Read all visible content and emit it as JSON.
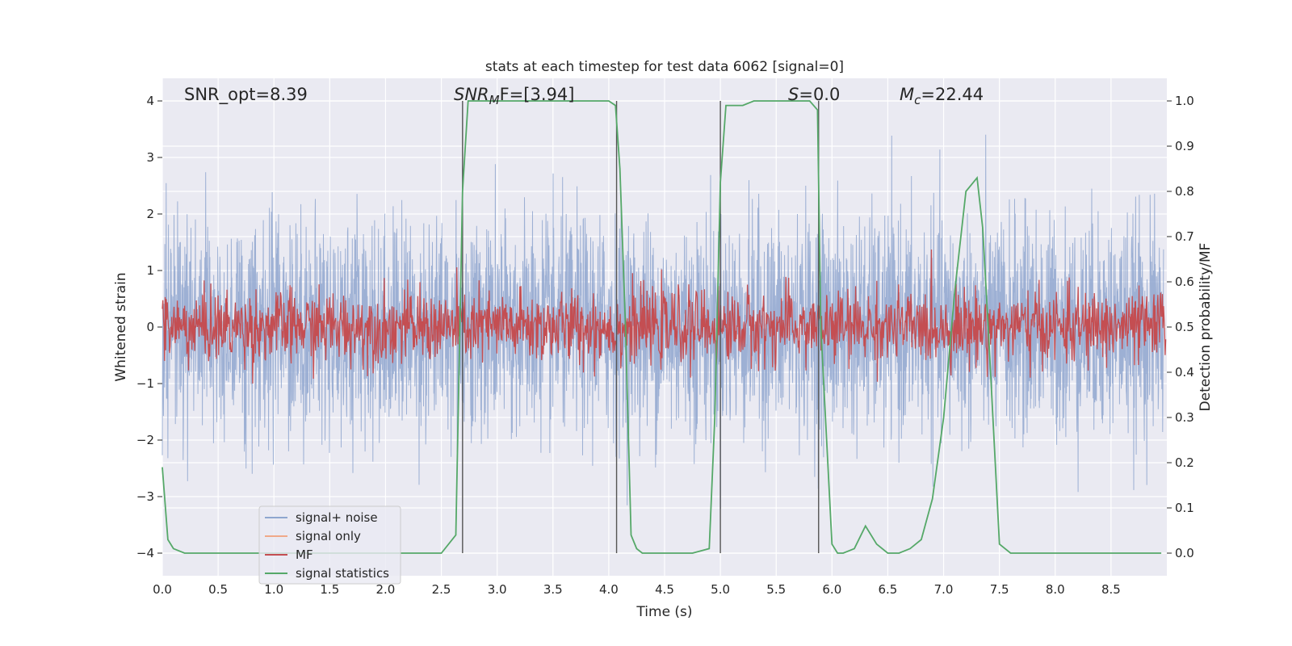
{
  "chart_data": {
    "type": "line",
    "title": "stats at each timestep for test data 6062 [signal=0]",
    "xlabel": "Time (s)",
    "ylabel_left": "Whitened strain",
    "ylabel_right": "Detection probability/MF",
    "xlim": [
      0.0,
      9.0
    ],
    "ylim_left": [
      -4.4,
      4.4
    ],
    "ylim_right": [
      -0.05,
      1.05
    ],
    "x_ticks": [
      0.0,
      0.5,
      1.0,
      1.5,
      2.0,
      2.5,
      3.0,
      3.5,
      4.0,
      4.5,
      5.0,
      5.5,
      6.0,
      6.5,
      7.0,
      7.5,
      8.0,
      8.5
    ],
    "x_tick_labels": [
      "0.0",
      "0.5",
      "1.0",
      "1.5",
      "2.0",
      "2.5",
      "3.0",
      "3.5",
      "4.0",
      "4.5",
      "5.0",
      "5.5",
      "6.0",
      "6.5",
      "7.0",
      "7.5",
      "8.0",
      "8.5"
    ],
    "y_ticks_left": [
      4,
      3,
      2,
      1,
      0,
      -1,
      -2,
      -3,
      -4
    ],
    "y_tick_labels_left": [
      "4",
      "3",
      "2",
      "1",
      "0",
      "−1",
      "−2",
      "−3",
      "−4"
    ],
    "y_ticks_right": [
      1.0,
      0.9,
      0.8,
      0.7,
      0.6,
      0.5,
      0.4,
      0.3,
      0.2,
      0.1,
      0.0
    ],
    "y_tick_labels_right": [
      "1.0",
      "0.9",
      "0.8",
      "0.7",
      "0.6",
      "0.5",
      "0.4",
      "0.3",
      "0.2",
      "0.1",
      "0.0"
    ],
    "grid": true,
    "legend_position": "lower-left",
    "legend": [
      {
        "label": "signal+ noise",
        "color": "#8fa6cf"
      },
      {
        "label": "signal only",
        "color": "#f0a989"
      },
      {
        "label": "MF",
        "color": "#c44e52"
      },
      {
        "label": "signal statistics",
        "color": "#55a868"
      }
    ],
    "annotations": {
      "snr_opt": "SNR_opt=8.39",
      "snr_mf_base": "SNR",
      "snr_mf_sub": "M",
      "snr_mf_rest": "F=[3.94]",
      "s_it": "S",
      "s_rest": "=0.0",
      "mc_base": "M",
      "mc_sub": "c",
      "mc_rest": "=22.44"
    },
    "vertical_markers_s": [
      2.69,
      4.07,
      5.0,
      5.88
    ],
    "signal_noise": {
      "description_free": true,
      "duration_s": 9.0,
      "sigma": 0.95
    },
    "mf": {
      "mean": 0.5,
      "amplitude": 0.08
    },
    "signal_statistics": {
      "x": [
        0.0,
        0.05,
        0.1,
        0.2,
        0.3,
        0.5,
        1.0,
        1.5,
        2.0,
        2.5,
        2.63,
        2.69,
        2.74,
        2.8,
        3.0,
        3.5,
        4.0,
        4.06,
        4.1,
        4.15,
        4.2,
        4.25,
        4.3,
        4.5,
        4.75,
        4.9,
        4.95,
        5.0,
        5.05,
        5.1,
        5.2,
        5.3,
        5.5,
        5.8,
        5.87,
        5.9,
        6.0,
        6.05,
        6.1,
        6.2,
        6.3,
        6.4,
        6.5,
        6.6,
        6.7,
        6.8,
        6.9,
        7.0,
        7.1,
        7.2,
        7.3,
        7.35,
        7.4,
        7.5,
        7.6,
        8.0,
        8.5,
        8.95
      ],
      "y": [
        0.19,
        0.03,
        0.01,
        0.0,
        0.0,
        0.0,
        0.0,
        0.0,
        0.0,
        0.0,
        0.04,
        0.8,
        1.0,
        1.0,
        1.0,
        1.0,
        1.0,
        0.99,
        0.85,
        0.5,
        0.04,
        0.01,
        0.0,
        0.0,
        0.0,
        0.01,
        0.3,
        0.82,
        0.99,
        0.99,
        0.99,
        1.0,
        1.0,
        1.0,
        0.98,
        0.5,
        0.02,
        0.0,
        0.0,
        0.01,
        0.06,
        0.02,
        0.0,
        0.0,
        0.01,
        0.03,
        0.12,
        0.3,
        0.58,
        0.8,
        0.83,
        0.72,
        0.5,
        0.02,
        0.0,
        0.0,
        0.0,
        0.0
      ]
    }
  }
}
